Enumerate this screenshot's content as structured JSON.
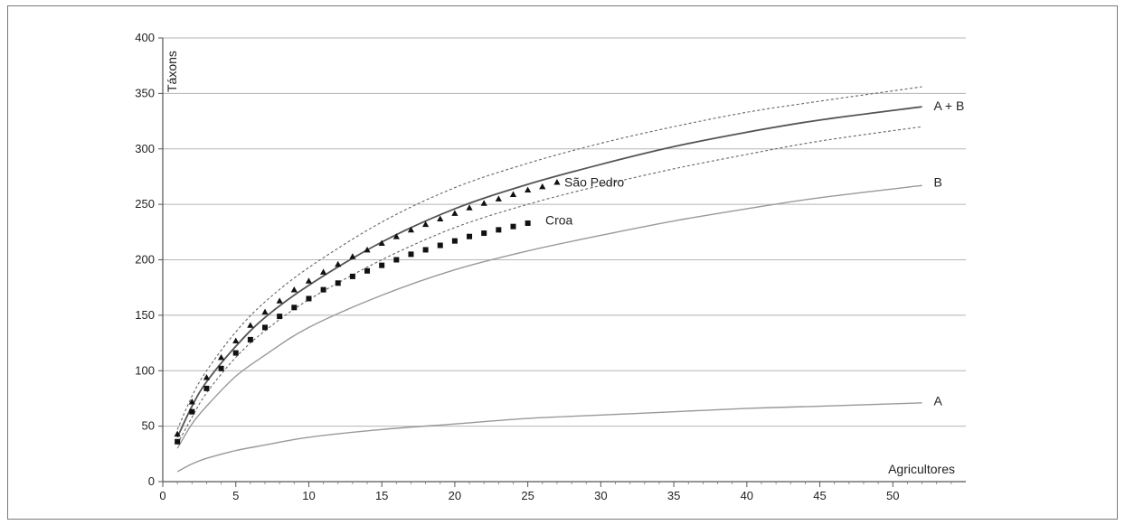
{
  "chart_data": {
    "type": "line",
    "title": "",
    "xlabel": "Agricultores",
    "ylabel": "Táxons",
    "xlim": [
      0,
      55
    ],
    "ylim": [
      0,
      400
    ],
    "x_ticks": [
      "0",
      "5",
      "10",
      "15",
      "20",
      "25",
      "30",
      "35",
      "40",
      "45",
      "50"
    ],
    "y_ticks": [
      "0",
      "50",
      "100",
      "150",
      "200",
      "250",
      "300",
      "350",
      "400"
    ],
    "grid": "horizontal",
    "series": [
      {
        "name": "A + B",
        "style": "solid",
        "color": "#555555",
        "x": [
          1,
          2,
          3,
          5,
          7,
          10,
          15,
          20,
          25,
          30,
          35,
          40,
          45,
          52
        ],
        "y": [
          40,
          68,
          90,
          122,
          148,
          177,
          216,
          246,
          268,
          286,
          302,
          315,
          326,
          338
        ]
      },
      {
        "name": "B",
        "style": "solid",
        "color": "#999999",
        "x": [
          1,
          2,
          3,
          5,
          7,
          10,
          15,
          20,
          25,
          30,
          35,
          40,
          45,
          52
        ],
        "y": [
          30,
          52,
          68,
          95,
          114,
          139,
          168,
          191,
          208,
          222,
          235,
          246,
          256,
          267
        ]
      },
      {
        "name": "A",
        "style": "solid",
        "color": "#999999",
        "x": [
          1,
          2,
          3,
          5,
          7,
          10,
          15,
          20,
          25,
          30,
          35,
          40,
          45,
          52
        ],
        "y": [
          9,
          16,
          21,
          28,
          33,
          40,
          47,
          52,
          57,
          60,
          63,
          66,
          68,
          71
        ]
      },
      {
        "name": "",
        "style": "dashed",
        "color": "#666666",
        "x": [
          1,
          2,
          3,
          5,
          7,
          10,
          15,
          20,
          25,
          30,
          35,
          40,
          45,
          52
        ],
        "y": [
          47,
          77,
          100,
          135,
          162,
          193,
          234,
          265,
          287,
          305,
          320,
          333,
          343,
          356
        ]
      },
      {
        "name": "",
        "style": "dashed",
        "color": "#666666",
        "x": [
          1,
          2,
          3,
          5,
          7,
          10,
          15,
          20,
          25,
          30,
          35,
          40,
          45,
          52
        ],
        "y": [
          34,
          58,
          80,
          112,
          136,
          164,
          200,
          229,
          250,
          267,
          282,
          295,
          307,
          320
        ]
      },
      {
        "name": "São Pedro",
        "style": "triangles",
        "color": "#111111",
        "x": [
          1,
          2,
          3,
          4,
          5,
          6,
          7,
          8,
          9,
          10,
          11,
          12,
          13,
          14,
          15,
          16,
          17,
          18,
          19,
          20,
          21,
          22,
          23,
          24,
          25,
          26,
          27
        ],
        "y": [
          43,
          72,
          94,
          112,
          127,
          141,
          153,
          163,
          173,
          181,
          189,
          196,
          203,
          209,
          215,
          221,
          227,
          232,
          237,
          242,
          247,
          251,
          255,
          259,
          263,
          266,
          270
        ]
      },
      {
        "name": "Croa",
        "style": "squares",
        "color": "#111111",
        "x": [
          1,
          2,
          3,
          4,
          5,
          6,
          7,
          8,
          9,
          10,
          11,
          12,
          13,
          14,
          15,
          16,
          17,
          18,
          19,
          20,
          21,
          22,
          23,
          24,
          25
        ],
        "y": [
          36,
          63,
          84,
          102,
          116,
          128,
          139,
          149,
          157,
          165,
          173,
          179,
          185,
          190,
          195,
          200,
          205,
          209,
          213,
          217,
          221,
          224,
          227,
          230,
          233
        ]
      }
    ],
    "annotations": [
      {
        "text": "São Pedro",
        "x": 27.5,
        "y": 270
      },
      {
        "text": "Croa",
        "x": 26.2,
        "y": 236
      },
      {
        "text": "A + B",
        "x": 52.8,
        "y": 339
      },
      {
        "text": "B",
        "x": 52.8,
        "y": 270
      },
      {
        "text": "A",
        "x": 52.8,
        "y": 73
      }
    ]
  }
}
